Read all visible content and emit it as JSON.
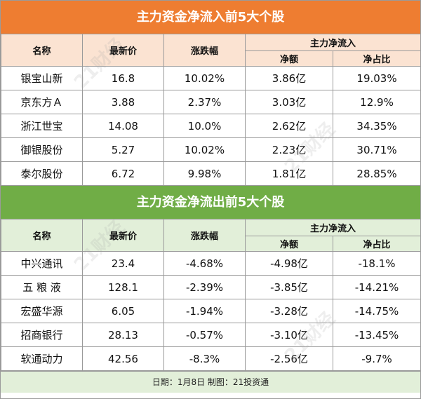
{
  "top": {
    "title": "主力资金净流入前5大个股",
    "headers": {
      "name": "名称",
      "price": "最新价",
      "change": "涨跌幅",
      "group": "主力净流入",
      "amount": "净额",
      "ratio": "净占比"
    },
    "rows": [
      {
        "name": "银宝山新",
        "price": "16.8",
        "change": "10.02%",
        "amount": "3.86亿",
        "ratio": "19.03%"
      },
      {
        "name": "京东方Ａ",
        "price": "3.88",
        "change": "2.37%",
        "amount": "3.03亿",
        "ratio": "12.9%"
      },
      {
        "name": "浙江世宝",
        "price": "14.08",
        "change": "10.0%",
        "amount": "2.62亿",
        "ratio": "34.35%"
      },
      {
        "name": "御银股份",
        "price": "5.27",
        "change": "10.02%",
        "amount": "2.23亿",
        "ratio": "30.71%"
      },
      {
        "name": "泰尔股份",
        "price": "6.72",
        "change": "9.98%",
        "amount": "1.81亿",
        "ratio": "28.85%"
      }
    ]
  },
  "bottom": {
    "title": "主力资金净流出前5大个股",
    "headers": {
      "name": "名称",
      "price": "最新价",
      "change": "涨跌幅",
      "group": "主力净流入",
      "amount": "净额",
      "ratio": "净占比"
    },
    "rows": [
      {
        "name": "中兴通讯",
        "price": "23.4",
        "change": "-4.68%",
        "amount": "-4.98亿",
        "ratio": "-18.1%"
      },
      {
        "name": "五 粮 液",
        "price": "128.1",
        "change": "-2.39%",
        "amount": "-3.85亿",
        "ratio": "-14.21%"
      },
      {
        "name": "宏盛华源",
        "price": "6.05",
        "change": "-1.94%",
        "amount": "-3.28亿",
        "ratio": "-14.75%"
      },
      {
        "name": "招商银行",
        "price": "28.13",
        "change": "-0.57%",
        "amount": "-3.10亿",
        "ratio": "-13.45%"
      },
      {
        "name": "软通动力",
        "price": "42.56",
        "change": "-8.3%",
        "amount": "-2.56亿",
        "ratio": "-9.7%"
      }
    ]
  },
  "footer": "日期：1月8日 制图：21投资通",
  "watermark": "21财经",
  "colors": {
    "orange": "#ee7d31",
    "green": "#70ad46",
    "orange_light": "#fbe3d2",
    "green_light": "#e2efd9"
  }
}
